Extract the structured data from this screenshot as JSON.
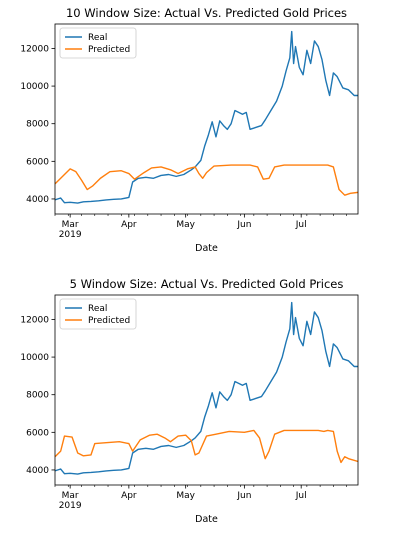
{
  "chart_data": [
    {
      "type": "line",
      "title": "10 Window Size: Actual Vs. Predicted Gold Prices",
      "xlabel": "Date",
      "ylabel": "",
      "x_range": [
        "2019-02-21",
        "2019-07-31"
      ],
      "ylim": [
        3200,
        13300
      ],
      "yticks": [
        4000,
        6000,
        8000,
        10000,
        12000
      ],
      "xticks": [
        {
          "date": "2019-03-01",
          "label": "Mar",
          "sublabel": "2019"
        },
        {
          "date": "2019-04-01",
          "label": "Apr",
          "sublabel": ""
        },
        {
          "date": "2019-05-01",
          "label": "May",
          "sublabel": ""
        },
        {
          "date": "2019-06-01",
          "label": "Jun",
          "sublabel": ""
        },
        {
          "date": "2019-07-01",
          "label": "Jul",
          "sublabel": ""
        }
      ],
      "legend": {
        "placement": "top-left"
      },
      "grid": false,
      "series": [
        {
          "name": "Real",
          "color": "#1f77b4",
          "points": [
            [
              "2019-02-21",
              3950
            ],
            [
              "2019-02-24",
              4050
            ],
            [
              "2019-02-26",
              3800
            ],
            [
              "2019-03-01",
              3820
            ],
            [
              "2019-03-05",
              3780
            ],
            [
              "2019-03-08",
              3850
            ],
            [
              "2019-03-12",
              3870
            ],
            [
              "2019-03-16",
              3900
            ],
            [
              "2019-03-20",
              3950
            ],
            [
              "2019-03-24",
              3980
            ],
            [
              "2019-03-28",
              4000
            ],
            [
              "2019-04-01",
              4080
            ],
            [
              "2019-04-03",
              4900
            ],
            [
              "2019-04-06",
              5100
            ],
            [
              "2019-04-10",
              5150
            ],
            [
              "2019-04-14",
              5100
            ],
            [
              "2019-04-18",
              5250
            ],
            [
              "2019-04-22",
              5300
            ],
            [
              "2019-04-26",
              5200
            ],
            [
              "2019-04-30",
              5300
            ],
            [
              "2019-05-04",
              5550
            ],
            [
              "2019-05-06",
              5700
            ],
            [
              "2019-05-09",
              6050
            ],
            [
              "2019-05-11",
              6800
            ],
            [
              "2019-05-13",
              7400
            ],
            [
              "2019-05-15",
              8100
            ],
            [
              "2019-05-17",
              7300
            ],
            [
              "2019-05-19",
              8150
            ],
            [
              "2019-05-21",
              7900
            ],
            [
              "2019-05-23",
              7700
            ],
            [
              "2019-05-25",
              8000
            ],
            [
              "2019-05-27",
              8700
            ],
            [
              "2019-05-29",
              8600
            ],
            [
              "2019-05-31",
              8500
            ],
            [
              "2019-06-02",
              8600
            ],
            [
              "2019-06-04",
              7700
            ],
            [
              "2019-06-07",
              7800
            ],
            [
              "2019-06-10",
              7900
            ],
            [
              "2019-06-12",
              8200
            ],
            [
              "2019-06-15",
              8700
            ],
            [
              "2019-06-18",
              9200
            ],
            [
              "2019-06-21",
              10000
            ],
            [
              "2019-06-23",
              10800
            ],
            [
              "2019-06-25",
              11500
            ],
            [
              "2019-06-26",
              12900
            ],
            [
              "2019-06-27",
              11200
            ],
            [
              "2019-06-28",
              12100
            ],
            [
              "2019-06-30",
              11000
            ],
            [
              "2019-07-02",
              10600
            ],
            [
              "2019-07-04",
              11900
            ],
            [
              "2019-07-06",
              11200
            ],
            [
              "2019-07-08",
              12400
            ],
            [
              "2019-07-10",
              12100
            ],
            [
              "2019-07-12",
              11400
            ],
            [
              "2019-07-14",
              10300
            ],
            [
              "2019-07-16",
              9500
            ],
            [
              "2019-07-18",
              10700
            ],
            [
              "2019-07-20",
              10500
            ],
            [
              "2019-07-23",
              9900
            ],
            [
              "2019-07-26",
              9800
            ],
            [
              "2019-07-29",
              9500
            ],
            [
              "2019-07-31",
              9500
            ]
          ]
        },
        {
          "name": "Predicted",
          "color": "#ff7f0e",
          "points": [
            [
              "2019-02-21",
              4800
            ],
            [
              "2019-02-25",
              5200
            ],
            [
              "2019-03-01",
              5600
            ],
            [
              "2019-03-04",
              5450
            ],
            [
              "2019-03-07",
              5000
            ],
            [
              "2019-03-10",
              4500
            ],
            [
              "2019-03-13",
              4700
            ],
            [
              "2019-03-17",
              5100
            ],
            [
              "2019-03-22",
              5450
            ],
            [
              "2019-03-28",
              5500
            ],
            [
              "2019-04-01",
              5350
            ],
            [
              "2019-04-04",
              5050
            ],
            [
              "2019-04-09",
              5400
            ],
            [
              "2019-04-13",
              5650
            ],
            [
              "2019-04-18",
              5700
            ],
            [
              "2019-04-23",
              5550
            ],
            [
              "2019-04-27",
              5350
            ],
            [
              "2019-05-02",
              5600
            ],
            [
              "2019-05-06",
              5700
            ],
            [
              "2019-05-08",
              5350
            ],
            [
              "2019-05-10",
              5100
            ],
            [
              "2019-05-12",
              5400
            ],
            [
              "2019-05-16",
              5750
            ],
            [
              "2019-05-25",
              5800
            ],
            [
              "2019-06-04",
              5800
            ],
            [
              "2019-06-08",
              5700
            ],
            [
              "2019-06-11",
              5050
            ],
            [
              "2019-06-14",
              5100
            ],
            [
              "2019-06-17",
              5700
            ],
            [
              "2019-06-22",
              5800
            ],
            [
              "2019-07-15",
              5800
            ],
            [
              "2019-07-18",
              5700
            ],
            [
              "2019-07-21",
              4500
            ],
            [
              "2019-07-24",
              4200
            ],
            [
              "2019-07-27",
              4300
            ],
            [
              "2019-07-31",
              4350
            ]
          ]
        }
      ]
    },
    {
      "type": "line",
      "title": "5 Window Size: Actual Vs. Predicted Gold Prices",
      "xlabel": "Date",
      "ylabel": "",
      "x_range": [
        "2019-02-21",
        "2019-07-31"
      ],
      "ylim": [
        3200,
        13300
      ],
      "yticks": [
        4000,
        6000,
        8000,
        10000,
        12000
      ],
      "xticks": [
        {
          "date": "2019-03-01",
          "label": "Mar",
          "sublabel": "2019"
        },
        {
          "date": "2019-04-01",
          "label": "Apr",
          "sublabel": ""
        },
        {
          "date": "2019-05-01",
          "label": "May",
          "sublabel": ""
        },
        {
          "date": "2019-06-01",
          "label": "Jun",
          "sublabel": ""
        },
        {
          "date": "2019-07-01",
          "label": "Jul",
          "sublabel": ""
        }
      ],
      "legend": {
        "placement": "top-left"
      },
      "grid": false,
      "series": [
        {
          "name": "Real",
          "color": "#1f77b4",
          "points": [
            [
              "2019-02-21",
              3950
            ],
            [
              "2019-02-24",
              4050
            ],
            [
              "2019-02-26",
              3800
            ],
            [
              "2019-03-01",
              3820
            ],
            [
              "2019-03-05",
              3780
            ],
            [
              "2019-03-08",
              3850
            ],
            [
              "2019-03-12",
              3870
            ],
            [
              "2019-03-16",
              3900
            ],
            [
              "2019-03-20",
              3950
            ],
            [
              "2019-03-24",
              3980
            ],
            [
              "2019-03-28",
              4000
            ],
            [
              "2019-04-01",
              4080
            ],
            [
              "2019-04-03",
              4900
            ],
            [
              "2019-04-06",
              5100
            ],
            [
              "2019-04-10",
              5150
            ],
            [
              "2019-04-14",
              5100
            ],
            [
              "2019-04-18",
              5250
            ],
            [
              "2019-04-22",
              5300
            ],
            [
              "2019-04-26",
              5200
            ],
            [
              "2019-04-30",
              5300
            ],
            [
              "2019-05-04",
              5550
            ],
            [
              "2019-05-06",
              5700
            ],
            [
              "2019-05-09",
              6050
            ],
            [
              "2019-05-11",
              6800
            ],
            [
              "2019-05-13",
              7400
            ],
            [
              "2019-05-15",
              8100
            ],
            [
              "2019-05-17",
              7300
            ],
            [
              "2019-05-19",
              8150
            ],
            [
              "2019-05-21",
              7900
            ],
            [
              "2019-05-23",
              7700
            ],
            [
              "2019-05-25",
              8000
            ],
            [
              "2019-05-27",
              8700
            ],
            [
              "2019-05-29",
              8600
            ],
            [
              "2019-05-31",
              8500
            ],
            [
              "2019-06-02",
              8600
            ],
            [
              "2019-06-04",
              7700
            ],
            [
              "2019-06-07",
              7800
            ],
            [
              "2019-06-10",
              7900
            ],
            [
              "2019-06-12",
              8200
            ],
            [
              "2019-06-15",
              8700
            ],
            [
              "2019-06-18",
              9200
            ],
            [
              "2019-06-21",
              10000
            ],
            [
              "2019-06-23",
              10800
            ],
            [
              "2019-06-25",
              11500
            ],
            [
              "2019-06-26",
              12900
            ],
            [
              "2019-06-27",
              11200
            ],
            [
              "2019-06-28",
              12100
            ],
            [
              "2019-06-30",
              11000
            ],
            [
              "2019-07-02",
              10600
            ],
            [
              "2019-07-04",
              11900
            ],
            [
              "2019-07-06",
              11200
            ],
            [
              "2019-07-08",
              12400
            ],
            [
              "2019-07-10",
              12100
            ],
            [
              "2019-07-12",
              11400
            ],
            [
              "2019-07-14",
              10300
            ],
            [
              "2019-07-16",
              9500
            ],
            [
              "2019-07-18",
              10700
            ],
            [
              "2019-07-20",
              10500
            ],
            [
              "2019-07-23",
              9900
            ],
            [
              "2019-07-26",
              9800
            ],
            [
              "2019-07-29",
              9500
            ],
            [
              "2019-07-31",
              9500
            ]
          ]
        },
        {
          "name": "Predicted",
          "color": "#ff7f0e",
          "points": [
            [
              "2019-02-21",
              4700
            ],
            [
              "2019-02-24",
              5000
            ],
            [
              "2019-02-26",
              5800
            ],
            [
              "2019-03-02",
              5750
            ],
            [
              "2019-03-05",
              4900
            ],
            [
              "2019-03-08",
              4750
            ],
            [
              "2019-03-12",
              4800
            ],
            [
              "2019-03-14",
              5400
            ],
            [
              "2019-03-20",
              5450
            ],
            [
              "2019-03-27",
              5500
            ],
            [
              "2019-04-01",
              5400
            ],
            [
              "2019-04-03",
              5000
            ],
            [
              "2019-04-07",
              5600
            ],
            [
              "2019-04-12",
              5850
            ],
            [
              "2019-04-16",
              5900
            ],
            [
              "2019-04-20",
              5700
            ],
            [
              "2019-04-23",
              5500
            ],
            [
              "2019-04-27",
              5800
            ],
            [
              "2019-05-01",
              5850
            ],
            [
              "2019-05-04",
              5550
            ],
            [
              "2019-05-06",
              4800
            ],
            [
              "2019-05-08",
              4900
            ],
            [
              "2019-05-12",
              5800
            ],
            [
              "2019-05-17",
              5900
            ],
            [
              "2019-05-24",
              6050
            ],
            [
              "2019-06-01",
              6000
            ],
            [
              "2019-06-06",
              6100
            ],
            [
              "2019-06-09",
              5700
            ],
            [
              "2019-06-12",
              4600
            ],
            [
              "2019-06-14",
              5000
            ],
            [
              "2019-06-17",
              5900
            ],
            [
              "2019-06-22",
              6100
            ],
            [
              "2019-07-10",
              6100
            ],
            [
              "2019-07-13",
              6050
            ],
            [
              "2019-07-15",
              6100
            ],
            [
              "2019-07-18",
              6050
            ],
            [
              "2019-07-20",
              5000
            ],
            [
              "2019-07-22",
              4400
            ],
            [
              "2019-07-24",
              4700
            ],
            [
              "2019-07-26",
              4600
            ],
            [
              "2019-07-31",
              4450
            ]
          ]
        }
      ]
    }
  ]
}
